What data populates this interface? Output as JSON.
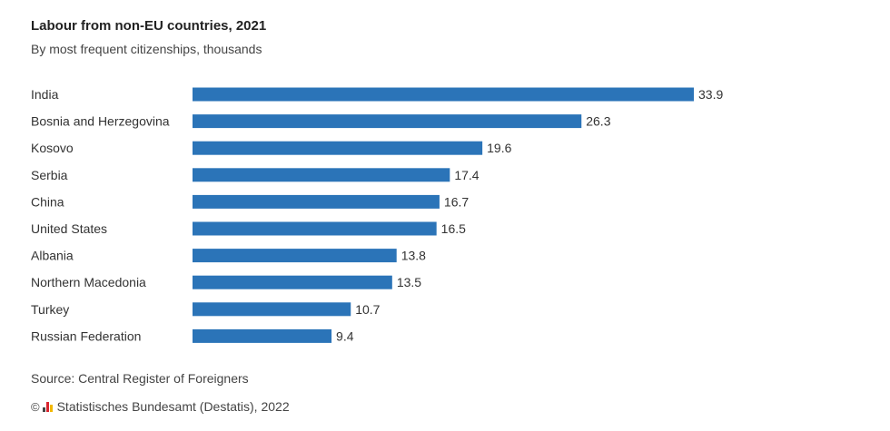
{
  "header": {
    "title": "Labour from non-EU countries, 2021",
    "subtitle": "By most frequent citizenships, thousands"
  },
  "footer": {
    "source": "Source: Central Register of Foreigners",
    "copyright_symbol": "©",
    "credit": "Statistisches Bundesamt (Destatis), 2022",
    "logo_icon": "destatis-logo-icon"
  },
  "colors": {
    "bar": "#2b74b8",
    "text": "#333333"
  },
  "chart_data": {
    "type": "bar",
    "orientation": "horizontal",
    "title": "Labour from non-EU countries, 2021",
    "subtitle": "By most frequent citizenships, thousands",
    "categories": [
      "India",
      "Bosnia and Herzegovina",
      "Kosovo",
      "Serbia",
      "China",
      "United States",
      "Albania",
      "Northern Macedonia",
      "Turkey",
      "Russian Federation"
    ],
    "values": [
      33.9,
      26.3,
      19.6,
      17.4,
      16.7,
      16.5,
      13.8,
      13.5,
      10.7,
      9.4
    ],
    "value_labels": [
      "33.9",
      "26.3",
      "19.6",
      "17.4",
      "16.7",
      "16.5",
      "13.8",
      "13.5",
      "10.7",
      "9.4"
    ],
    "xlim": [
      0,
      33.9
    ],
    "grid": false,
    "legend": "none"
  }
}
